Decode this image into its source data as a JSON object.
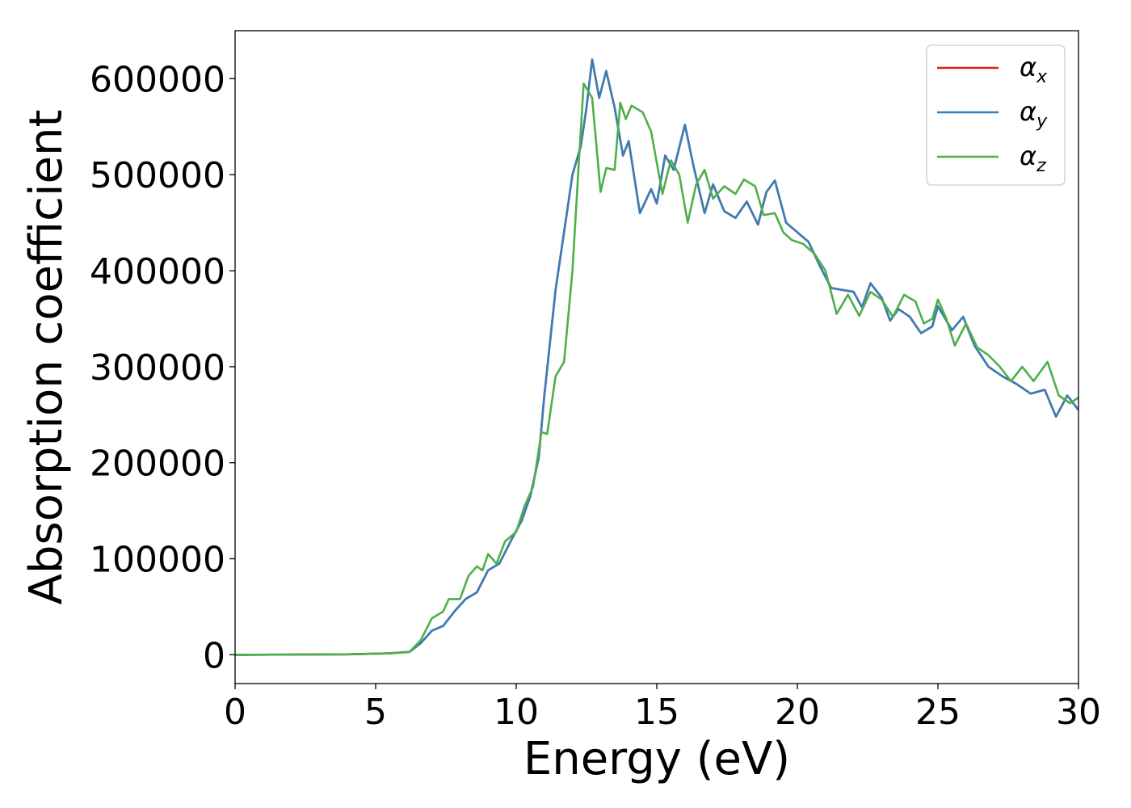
{
  "chart_data": {
    "type": "line",
    "xlabel": "Energy (eV)",
    "ylabel": "Absorption coefficient",
    "xlim": [
      0,
      30
    ],
    "ylim": [
      -30000,
      650000
    ],
    "xticks": [
      0,
      5,
      10,
      15,
      20,
      25,
      30
    ],
    "xtick_labels": [
      "0",
      "5",
      "10",
      "15",
      "20",
      "25",
      "30"
    ],
    "yticks": [
      0,
      100000,
      200000,
      300000,
      400000,
      500000,
      600000
    ],
    "ytick_labels": [
      "0",
      "100000",
      "200000",
      "300000",
      "400000",
      "500000",
      "600000"
    ],
    "grid": false,
    "legend_position": "top-right",
    "series": [
      {
        "name": "α_x",
        "name_base": "α",
        "name_sub": "x",
        "color": "#e41a1c",
        "points": [
          [
            0,
            0
          ],
          [
            4,
            500
          ],
          [
            5.5,
            1500
          ],
          [
            6.2,
            3000
          ],
          [
            6.6,
            12000
          ],
          [
            7,
            25000
          ],
          [
            7.4,
            30000
          ],
          [
            7.8,
            45000
          ],
          [
            8.2,
            58000
          ],
          [
            8.6,
            65000
          ],
          [
            9.0,
            88000
          ],
          [
            9.4,
            95000
          ],
          [
            9.8,
            118000
          ],
          [
            10.2,
            140000
          ],
          [
            10.5,
            165000
          ],
          [
            10.8,
            205000
          ],
          [
            11.0,
            270000
          ],
          [
            11.4,
            380000
          ],
          [
            11.7,
            440000
          ],
          [
            12.0,
            500000
          ],
          [
            12.3,
            530000
          ],
          [
            12.5,
            570000
          ],
          [
            12.7,
            620000
          ],
          [
            12.95,
            580000
          ],
          [
            13.2,
            608000
          ],
          [
            13.5,
            570000
          ],
          [
            13.8,
            520000
          ],
          [
            14.0,
            535000
          ],
          [
            14.4,
            460000
          ],
          [
            14.8,
            485000
          ],
          [
            15.0,
            470000
          ],
          [
            15.3,
            520000
          ],
          [
            15.6,
            505000
          ],
          [
            16.0,
            552000
          ],
          [
            16.3,
            510000
          ],
          [
            16.7,
            460000
          ],
          [
            17.0,
            490000
          ],
          [
            17.4,
            462000
          ],
          [
            17.8,
            455000
          ],
          [
            18.2,
            472000
          ],
          [
            18.6,
            448000
          ],
          [
            18.9,
            482000
          ],
          [
            19.2,
            494000
          ],
          [
            19.6,
            450000
          ],
          [
            20.0,
            440000
          ],
          [
            20.4,
            430000
          ],
          [
            20.8,
            405000
          ],
          [
            21.2,
            382000
          ],
          [
            21.6,
            380000
          ],
          [
            22.0,
            378000
          ],
          [
            22.3,
            362000
          ],
          [
            22.6,
            387000
          ],
          [
            23.0,
            372000
          ],
          [
            23.3,
            348000
          ],
          [
            23.6,
            360000
          ],
          [
            24.0,
            352000
          ],
          [
            24.4,
            335000
          ],
          [
            24.8,
            342000
          ],
          [
            25.0,
            363000
          ],
          [
            25.5,
            338000
          ],
          [
            25.9,
            352000
          ],
          [
            26.3,
            322000
          ],
          [
            26.8,
            300000
          ],
          [
            27.3,
            290000
          ],
          [
            27.8,
            282000
          ],
          [
            28.3,
            272000
          ],
          [
            28.8,
            276000
          ],
          [
            29.2,
            248000
          ],
          [
            29.6,
            270000
          ],
          [
            30.0,
            255000
          ]
        ]
      },
      {
        "name": "α_y",
        "name_base": "α",
        "name_sub": "y",
        "color": "#377eb8",
        "points": [
          [
            0,
            0
          ],
          [
            4,
            500
          ],
          [
            5.5,
            1500
          ],
          [
            6.2,
            3000
          ],
          [
            6.6,
            12000
          ],
          [
            7,
            25000
          ],
          [
            7.4,
            30000
          ],
          [
            7.8,
            45000
          ],
          [
            8.2,
            58000
          ],
          [
            8.6,
            65000
          ],
          [
            9.0,
            88000
          ],
          [
            9.4,
            95000
          ],
          [
            9.8,
            118000
          ],
          [
            10.2,
            140000
          ],
          [
            10.5,
            165000
          ],
          [
            10.8,
            205000
          ],
          [
            11.0,
            270000
          ],
          [
            11.4,
            380000
          ],
          [
            11.7,
            440000
          ],
          [
            12.0,
            500000
          ],
          [
            12.3,
            530000
          ],
          [
            12.5,
            570000
          ],
          [
            12.7,
            620000
          ],
          [
            12.95,
            580000
          ],
          [
            13.2,
            608000
          ],
          [
            13.5,
            570000
          ],
          [
            13.8,
            520000
          ],
          [
            14.0,
            535000
          ],
          [
            14.4,
            460000
          ],
          [
            14.8,
            485000
          ],
          [
            15.0,
            470000
          ],
          [
            15.3,
            520000
          ],
          [
            15.6,
            505000
          ],
          [
            16.0,
            552000
          ],
          [
            16.3,
            510000
          ],
          [
            16.7,
            460000
          ],
          [
            17.0,
            490000
          ],
          [
            17.4,
            462000
          ],
          [
            17.8,
            455000
          ],
          [
            18.2,
            472000
          ],
          [
            18.6,
            448000
          ],
          [
            18.9,
            482000
          ],
          [
            19.2,
            494000
          ],
          [
            19.6,
            450000
          ],
          [
            20.0,
            440000
          ],
          [
            20.4,
            430000
          ],
          [
            20.8,
            405000
          ],
          [
            21.2,
            382000
          ],
          [
            21.6,
            380000
          ],
          [
            22.0,
            378000
          ],
          [
            22.3,
            362000
          ],
          [
            22.6,
            387000
          ],
          [
            23.0,
            372000
          ],
          [
            23.3,
            348000
          ],
          [
            23.6,
            360000
          ],
          [
            24.0,
            352000
          ],
          [
            24.4,
            335000
          ],
          [
            24.8,
            342000
          ],
          [
            25.0,
            363000
          ],
          [
            25.5,
            338000
          ],
          [
            25.9,
            352000
          ],
          [
            26.3,
            322000
          ],
          [
            26.8,
            300000
          ],
          [
            27.3,
            290000
          ],
          [
            27.8,
            282000
          ],
          [
            28.3,
            272000
          ],
          [
            28.8,
            276000
          ],
          [
            29.2,
            248000
          ],
          [
            29.6,
            270000
          ],
          [
            30.0,
            255000
          ]
        ]
      },
      {
        "name": "α_z",
        "name_base": "α",
        "name_sub": "z",
        "color": "#4daf4a",
        "points": [
          [
            0,
            0
          ],
          [
            4,
            500
          ],
          [
            5.5,
            1500
          ],
          [
            6.2,
            3000
          ],
          [
            6.6,
            15000
          ],
          [
            7,
            38000
          ],
          [
            7.4,
            45000
          ],
          [
            7.6,
            58000
          ],
          [
            8.0,
            58000
          ],
          [
            8.3,
            82000
          ],
          [
            8.6,
            92000
          ],
          [
            8.8,
            88000
          ],
          [
            9.0,
            105000
          ],
          [
            9.3,
            95000
          ],
          [
            9.6,
            118000
          ],
          [
            10.0,
            128000
          ],
          [
            10.3,
            155000
          ],
          [
            10.6,
            175000
          ],
          [
            10.9,
            232000
          ],
          [
            11.1,
            230000
          ],
          [
            11.4,
            290000
          ],
          [
            11.7,
            305000
          ],
          [
            12.0,
            400000
          ],
          [
            12.2,
            500000
          ],
          [
            12.4,
            595000
          ],
          [
            12.7,
            580000
          ],
          [
            13.0,
            482000
          ],
          [
            13.2,
            507000
          ],
          [
            13.5,
            505000
          ],
          [
            13.7,
            575000
          ],
          [
            13.9,
            558000
          ],
          [
            14.1,
            572000
          ],
          [
            14.5,
            565000
          ],
          [
            14.8,
            545000
          ],
          [
            15.2,
            480000
          ],
          [
            15.5,
            515000
          ],
          [
            15.8,
            500000
          ],
          [
            16.1,
            450000
          ],
          [
            16.4,
            490000
          ],
          [
            16.7,
            505000
          ],
          [
            17.0,
            475000
          ],
          [
            17.4,
            488000
          ],
          [
            17.8,
            480000
          ],
          [
            18.1,
            495000
          ],
          [
            18.5,
            488000
          ],
          [
            18.8,
            458000
          ],
          [
            19.2,
            460000
          ],
          [
            19.5,
            440000
          ],
          [
            19.8,
            432000
          ],
          [
            20.2,
            428000
          ],
          [
            20.6,
            418000
          ],
          [
            21.0,
            400000
          ],
          [
            21.4,
            355000
          ],
          [
            21.8,
            375000
          ],
          [
            22.2,
            353000
          ],
          [
            22.6,
            378000
          ],
          [
            23.0,
            370000
          ],
          [
            23.4,
            352000
          ],
          [
            23.8,
            375000
          ],
          [
            24.2,
            368000
          ],
          [
            24.5,
            345000
          ],
          [
            24.8,
            350000
          ],
          [
            25.0,
            370000
          ],
          [
            25.3,
            350000
          ],
          [
            25.6,
            322000
          ],
          [
            26.0,
            345000
          ],
          [
            26.4,
            320000
          ],
          [
            26.8,
            312000
          ],
          [
            27.2,
            300000
          ],
          [
            27.6,
            285000
          ],
          [
            28.0,
            300000
          ],
          [
            28.4,
            285000
          ],
          [
            28.9,
            305000
          ],
          [
            29.3,
            270000
          ],
          [
            29.7,
            262000
          ],
          [
            30.0,
            268000
          ]
        ]
      }
    ]
  }
}
